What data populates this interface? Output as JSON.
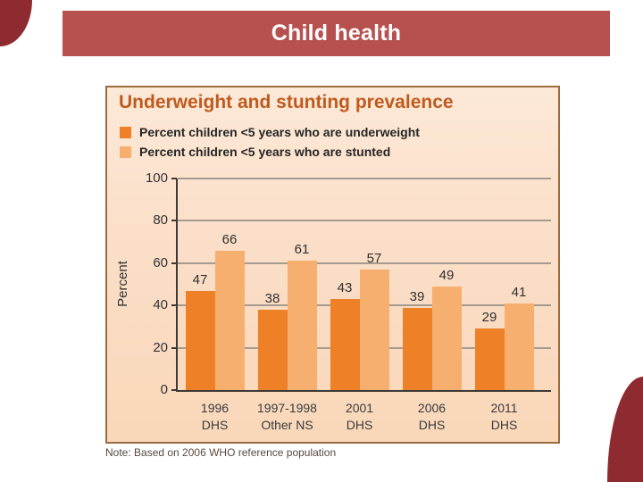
{
  "page": {
    "title": "Child health"
  },
  "chart_panel": {
    "title": "Underweight and stunting prevalence",
    "note": "Note: Based on 2006 WHO reference population"
  },
  "colors": {
    "titlebar_red": "#B75150",
    "corner_maroon": "#8E2B30",
    "panel_border_brown": "#9C6B3F",
    "chart_title_orange": "#C05A1E",
    "underweight_bar": "#EE8028",
    "stunted_bar": "#F7AF6F",
    "gridline_gray": "#A59A8E"
  },
  "chart_data": {
    "type": "bar",
    "title": "Underweight and stunting prevalence",
    "categories": [
      [
        "1996",
        "DHS"
      ],
      [
        "1997-1998",
        "Other NS"
      ],
      [
        "2001",
        "DHS"
      ],
      [
        "2006",
        "DHS"
      ],
      [
        "2011",
        "DHS"
      ]
    ],
    "series": [
      {
        "name": "Percent children <5 years who are underweight",
        "color": "#EE8028",
        "values": [
          47,
          38,
          43,
          39,
          29
        ]
      },
      {
        "name": "Percent children <5 years who are stunted",
        "color": "#F7AF6F",
        "values": [
          66,
          61,
          57,
          49,
          41
        ]
      }
    ],
    "ylabel": "Percent",
    "xlabel": "",
    "ylim": [
      0,
      100
    ],
    "yticks": [
      0,
      20,
      40,
      60,
      80,
      100
    ],
    "grid": true,
    "legend_position": "top",
    "data_labels": true
  }
}
